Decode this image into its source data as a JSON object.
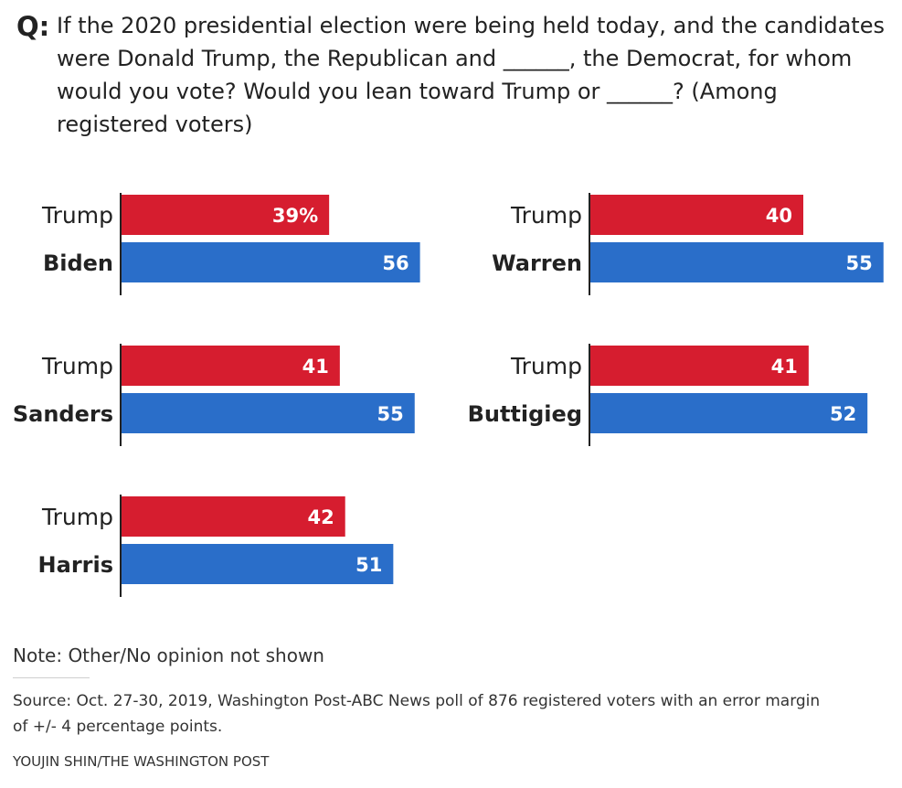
{
  "question": {
    "label": "Q:",
    "text": "If the 2020 presidential election were being held today, and the candidates were Donald Trump, the Republican and ______, the Democrat, for whom would you vote? Would you lean toward Trump or ______? (Among registered voters)"
  },
  "chart_data": {
    "type": "bar",
    "orientation": "horizontal",
    "value_suffix_first": "%",
    "colors": {
      "republican": "#d61d2f",
      "democrat": "#2a6ec9",
      "axis": "#222222"
    },
    "matchups": [
      {
        "republican": {
          "name": "Trump",
          "value": 39,
          "label": "39%"
        },
        "democrat": {
          "name": "Biden",
          "value": 56,
          "label": "56"
        }
      },
      {
        "republican": {
          "name": "Trump",
          "value": 40,
          "label": "40"
        },
        "democrat": {
          "name": "Warren",
          "value": 55,
          "label": "55"
        }
      },
      {
        "republican": {
          "name": "Trump",
          "value": 41,
          "label": "41"
        },
        "democrat": {
          "name": "Sanders",
          "value": 55,
          "label": "55"
        }
      },
      {
        "republican": {
          "name": "Trump",
          "value": 41,
          "label": "41"
        },
        "democrat": {
          "name": "Buttigieg",
          "value": 52,
          "label": "52"
        }
      },
      {
        "republican": {
          "name": "Trump",
          "value": 42,
          "label": "42"
        },
        "democrat": {
          "name": "Harris",
          "value": 51,
          "label": "51"
        }
      }
    ]
  },
  "note": "Note: Other/No opinion not shown",
  "source": "Source: Oct. 27-30, 2019, Washington Post-ABC News poll of 876 registered voters with an error margin of +/- 4 percentage points.",
  "credit": "YOUJIN SHIN/THE WASHINGTON POST"
}
